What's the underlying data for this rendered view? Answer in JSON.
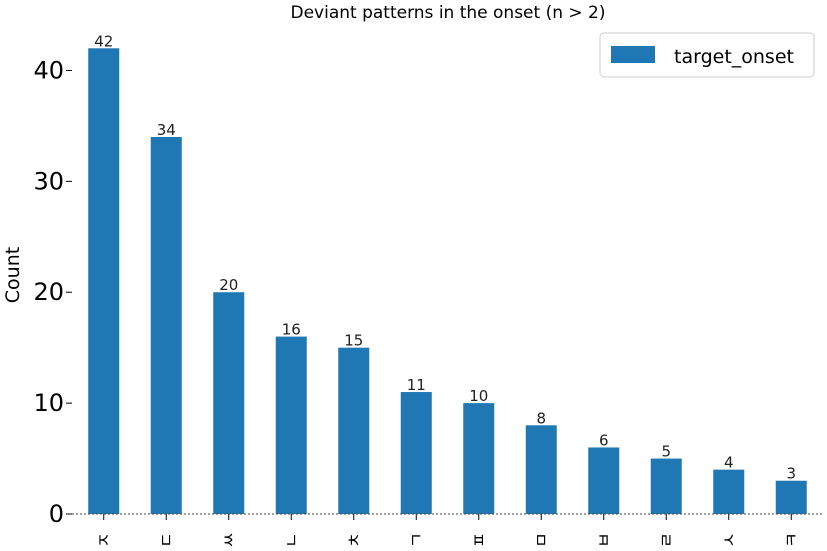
{
  "chart_data": {
    "type": "bar",
    "title": "Deviant patterns in the onset (n > 2)",
    "xlabel": "",
    "ylabel": "Count",
    "categories": [
      "ㅈ",
      "ㄷ",
      "ㅆ",
      "ㄴ",
      "ㅊ",
      "ㄱ",
      "ㅍ",
      "ㅁ",
      "ㅂ",
      "ㄹ",
      "ㅅ",
      "ㅋ"
    ],
    "series": [
      {
        "name": "target_onset",
        "values": [
          42,
          34,
          20,
          16,
          15,
          11,
          10,
          8,
          6,
          5,
          4,
          3
        ],
        "color": "#1f77b4"
      }
    ],
    "data_labels": [
      "42",
      "34",
      "20",
      "16",
      "15",
      "11",
      "10",
      "8",
      "6",
      "5",
      "4",
      "3"
    ],
    "yticks": [
      0,
      10,
      20,
      30,
      40
    ],
    "ylim": [
      0,
      44.1
    ],
    "grid": false,
    "legend_position": "top-right"
  }
}
